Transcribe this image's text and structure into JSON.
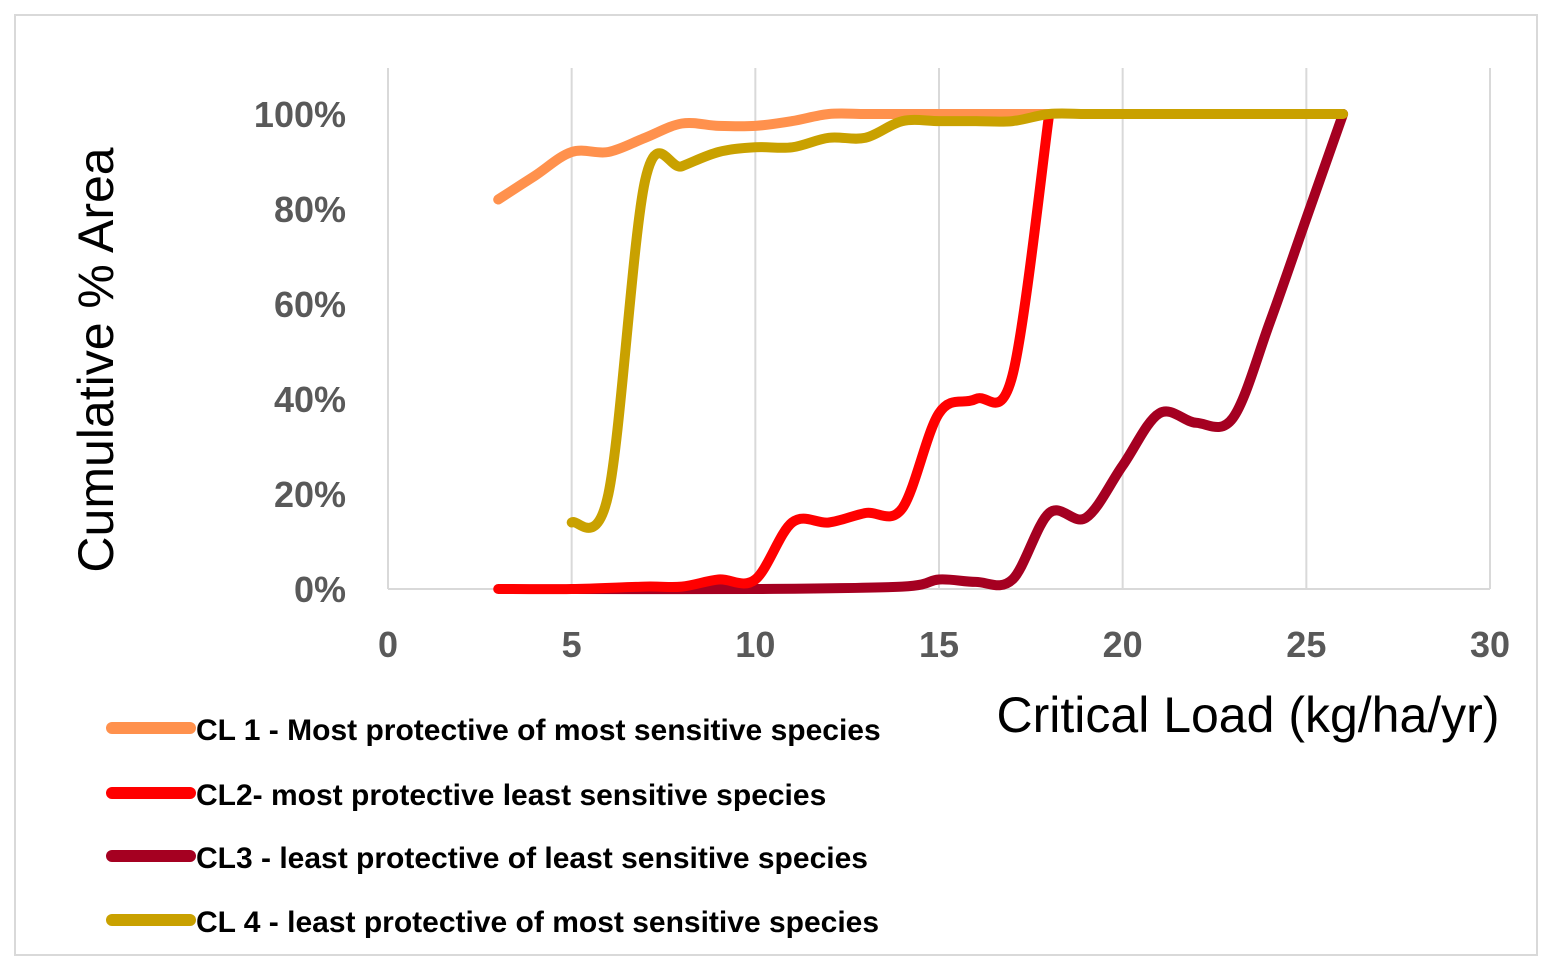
{
  "chart_data": {
    "type": "line",
    "title": "",
    "xlabel": "Critical Load (kg/ha/yr)",
    "ylabel": "Cumulative % Area",
    "xlim": [
      0,
      30
    ],
    "ylim": [
      0,
      100
    ],
    "x_ticks": [
      0,
      5,
      10,
      15,
      20,
      25,
      30
    ],
    "x_tick_labels": [
      "0",
      "5",
      "10",
      "15",
      "20",
      "25",
      "30"
    ],
    "y_ticks": [
      0,
      20,
      40,
      60,
      80,
      100
    ],
    "y_tick_labels": [
      "0%",
      "20%",
      "40%",
      "60%",
      "80%",
      "100%"
    ],
    "grid": "vertical gridlines",
    "legend_position": "bottom-left",
    "series": [
      {
        "name": "CL 1 - Most protective of most sensitive species",
        "color": "#FF914D",
        "points": [
          [
            3,
            82
          ],
          [
            4,
            87
          ],
          [
            5,
            92
          ],
          [
            6,
            92
          ],
          [
            7,
            95
          ],
          [
            8,
            98
          ],
          [
            9,
            97.5
          ],
          [
            10,
            97.5
          ],
          [
            11,
            98.5
          ],
          [
            12,
            100
          ],
          [
            13,
            100
          ],
          [
            14,
            100
          ],
          [
            15,
            100
          ],
          [
            16,
            100
          ],
          [
            17,
            100
          ],
          [
            18,
            100
          ]
        ]
      },
      {
        "name": "CL2- most protective least sensitive species",
        "color": "#FF0000",
        "points": [
          [
            3,
            0
          ],
          [
            5,
            0
          ],
          [
            7,
            0.5
          ],
          [
            8,
            0.5
          ],
          [
            9,
            2
          ],
          [
            10,
            2
          ],
          [
            11,
            14
          ],
          [
            12,
            14
          ],
          [
            13,
            16
          ],
          [
            14,
            17
          ],
          [
            15,
            37
          ],
          [
            16,
            40
          ],
          [
            17,
            45
          ],
          [
            18,
            100
          ]
        ]
      },
      {
        "name": "CL3 - least protective of least sensitive species",
        "color": "#A50021",
        "points": [
          [
            5,
            0
          ],
          [
            10,
            0
          ],
          [
            14,
            0.5
          ],
          [
            15,
            2
          ],
          [
            16,
            1.5
          ],
          [
            17,
            2
          ],
          [
            18,
            16
          ],
          [
            19,
            15
          ],
          [
            20,
            26
          ],
          [
            21,
            37
          ],
          [
            22,
            35
          ],
          [
            23,
            36
          ],
          [
            24,
            56
          ],
          [
            25,
            78
          ],
          [
            26,
            100
          ]
        ]
      },
      {
        "name": "CL 4 - least protective of most sensitive species",
        "color": "#C9A100",
        "points": [
          [
            5,
            14
          ],
          [
            6,
            20
          ],
          [
            7,
            86
          ],
          [
            8,
            89
          ],
          [
            9,
            92
          ],
          [
            10,
            93
          ],
          [
            11,
            93
          ],
          [
            12,
            95
          ],
          [
            13,
            95
          ],
          [
            14,
            98.5
          ],
          [
            15,
            98.5
          ],
          [
            16,
            98.5
          ],
          [
            17,
            98.5
          ],
          [
            18,
            100
          ],
          [
            19,
            100
          ],
          [
            20,
            100
          ],
          [
            21,
            100
          ],
          [
            22,
            100
          ],
          [
            23,
            100
          ],
          [
            24,
            100
          ],
          [
            25,
            100
          ],
          [
            26,
            100
          ]
        ]
      }
    ]
  }
}
